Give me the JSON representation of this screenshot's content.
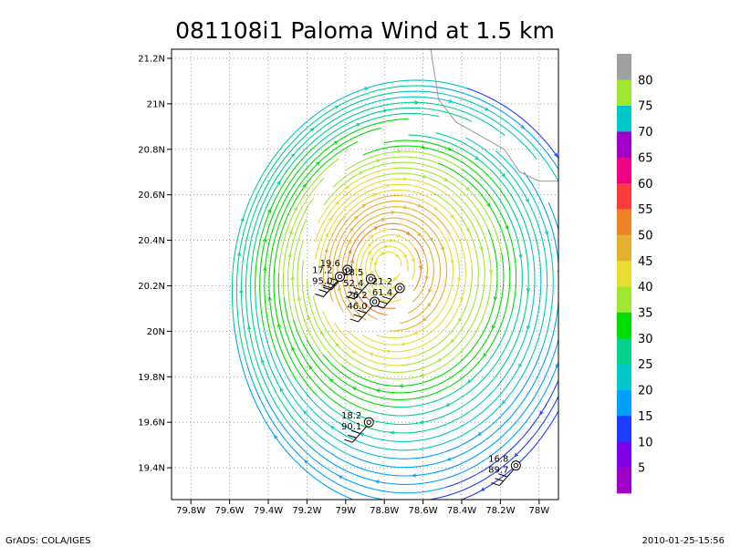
{
  "chart_data": {
    "type": "streamline",
    "title": "081108i1 Paloma Wind at 1.5 km",
    "xlabel": "",
    "ylabel": "",
    "x_ticks": [
      "79.8W",
      "79.6W",
      "79.4W",
      "79.2W",
      "79W",
      "78.8W",
      "78.6W",
      "78.4W",
      "78.2W",
      "78W"
    ],
    "x_tick_values": [
      -79.8,
      -79.6,
      -79.4,
      -79.2,
      -79.0,
      -78.8,
      -78.6,
      -78.4,
      -78.2,
      -78.0
    ],
    "y_ticks": [
      "19.4N",
      "19.6N",
      "19.8N",
      "20N",
      "20.2N",
      "20.4N",
      "20.6N",
      "20.8N",
      "21N",
      "21.2N"
    ],
    "y_tick_values": [
      19.4,
      19.6,
      19.8,
      20.0,
      20.2,
      20.4,
      20.6,
      20.8,
      21.0,
      21.2
    ],
    "xlim": [
      -79.9,
      -77.9
    ],
    "ylim": [
      19.26,
      21.24
    ],
    "grid": true,
    "vortex_center": {
      "lon": -78.79,
      "lat": 20.29
    },
    "colorbar": {
      "orientation": "vertical",
      "levels": [
        {
          "label": "5",
          "color": "#a000c8"
        },
        {
          "label": "10",
          "color": "#7d00e6"
        },
        {
          "label": "15",
          "color": "#1e3cff"
        },
        {
          "label": "20",
          "color": "#00a0ff"
        },
        {
          "label": "25",
          "color": "#00c8c8"
        },
        {
          "label": "30",
          "color": "#00d28c"
        },
        {
          "label": "35",
          "color": "#00dc00"
        },
        {
          "label": "40",
          "color": "#a0e632"
        },
        {
          "label": "45",
          "color": "#e6dc32"
        },
        {
          "label": "50",
          "color": "#e6af2d"
        },
        {
          "label": "55",
          "color": "#f08228"
        },
        {
          "label": "60",
          "color": "#fa3c3c"
        },
        {
          "label": "65",
          "color": "#f00082"
        },
        {
          "label": "70",
          "color": "#a000c8"
        },
        {
          "label": "75",
          "color": "#00c8c8"
        },
        {
          "label": "80",
          "color": "#a0e632"
        },
        {
          "label": "",
          "color": "#a0a0a0"
        }
      ]
    },
    "observations": [
      {
        "lon": -78.99,
        "lat": 20.27,
        "label_top": "19.6",
        "label_bottom": ""
      },
      {
        "lon": -79.03,
        "lat": 20.24,
        "label_top": "17.2",
        "label_bottom": "95.0"
      },
      {
        "lon": -78.87,
        "lat": 20.23,
        "label_top": "18.5",
        "label_bottom": "52.4"
      },
      {
        "lon": -78.72,
        "lat": 20.19,
        "label_top": "21.2",
        "label_bottom": "61.4"
      },
      {
        "lon": -78.85,
        "lat": 20.13,
        "label_top": "26.2",
        "label_bottom": "46.0"
      },
      {
        "lon": -78.88,
        "lat": 19.6,
        "label_top": "18.2",
        "label_bottom": "90.1"
      },
      {
        "lon": -78.12,
        "lat": 19.41,
        "label_top": "16.8",
        "label_bottom": "89.7"
      }
    ],
    "coastline": [
      {
        "lon": -78.56,
        "lat": 21.24
      },
      {
        "lon": -78.52,
        "lat": 21.02
      },
      {
        "lon": -78.43,
        "lat": 20.92
      },
      {
        "lon": -78.18,
        "lat": 20.8
      },
      {
        "lon": -78.1,
        "lat": 20.7
      },
      {
        "lon": -78.0,
        "lat": 20.66
      },
      {
        "lon": -77.9,
        "lat": 20.66
      }
    ]
  },
  "footer": {
    "left": "GrADS: COLA/IGES",
    "right": "2010-01-25-15:56"
  }
}
